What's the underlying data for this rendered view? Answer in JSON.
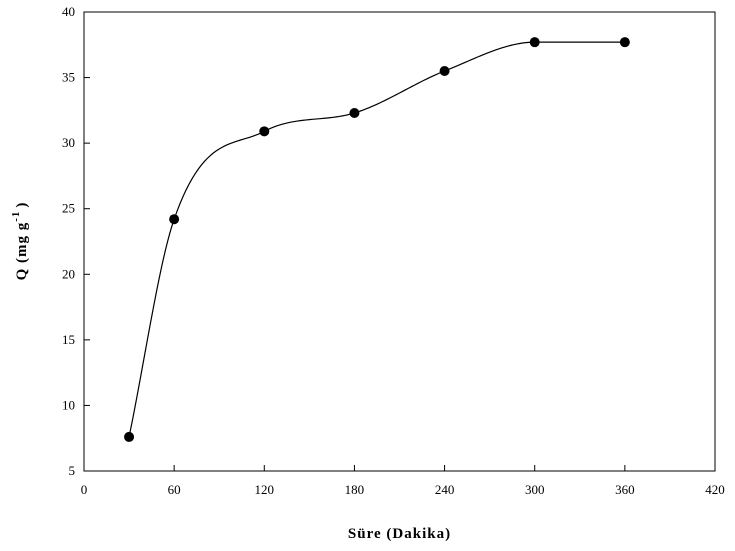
{
  "chart_data": {
    "type": "line",
    "title": "",
    "xlabel": "Süre (Dakika)",
    "ylabel": "Q (mg g⁻¹)",
    "ylabel_parts": {
      "main": "Q (mg g",
      "sup": "-1",
      "close": ")"
    },
    "xlim": [
      0,
      420
    ],
    "ylim": [
      5,
      40
    ],
    "xticks": [
      0,
      60,
      120,
      180,
      240,
      300,
      360,
      420
    ],
    "yticks": [
      5,
      10,
      15,
      20,
      25,
      30,
      35,
      40
    ],
    "grid": false,
    "smooth_curve": true,
    "series": [
      {
        "x": [
          30,
          60,
          120,
          180,
          240,
          300,
          360
        ],
        "values": [
          7.6,
          24.2,
          30.9,
          32.3,
          35.5,
          37.7,
          37.7
        ],
        "marker": "filled-circle",
        "color": "#000000"
      }
    ]
  }
}
